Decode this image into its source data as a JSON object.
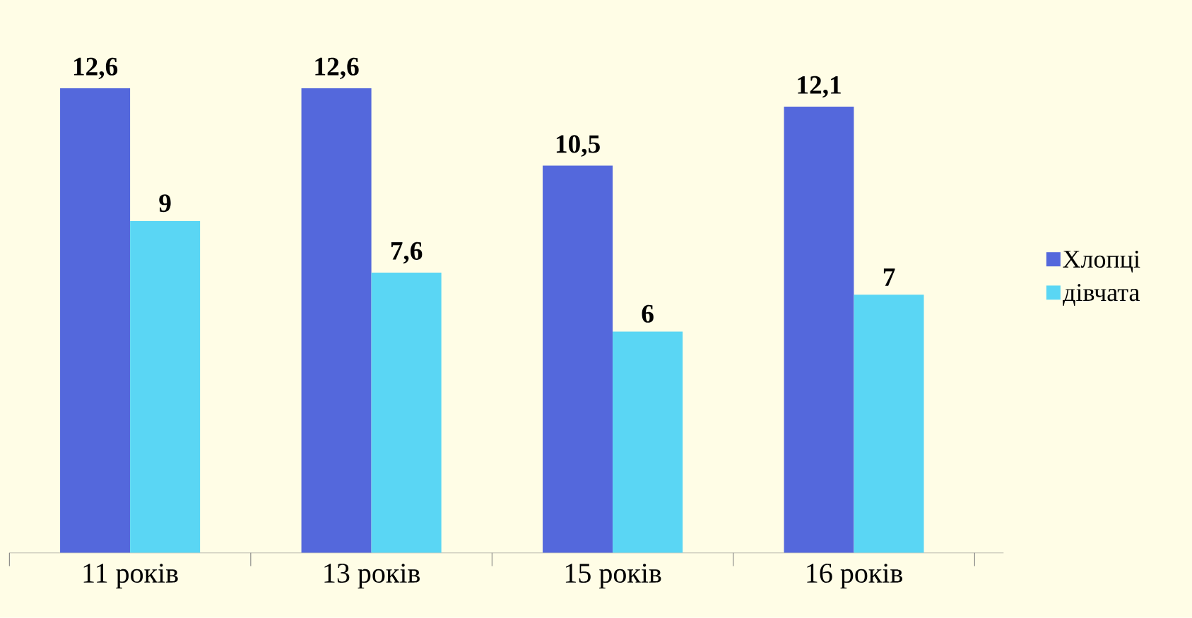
{
  "chart_data": {
    "type": "bar",
    "categories": [
      "11 років",
      "13 років",
      "15 років",
      "16 років"
    ],
    "series": [
      {
        "name": "Хлопці",
        "color": "#5468dc",
        "values": [
          12.6,
          12.6,
          10.5,
          12.1
        ],
        "value_labels": [
          "12,6",
          "12,6",
          "10,5",
          "12,1"
        ]
      },
      {
        "name": "дівчата",
        "color": "#5ad6f4",
        "values": [
          9,
          7.6,
          6,
          7
        ],
        "value_labels": [
          "9",
          "7,6",
          "6",
          "7"
        ]
      }
    ],
    "legend": "right"
  }
}
